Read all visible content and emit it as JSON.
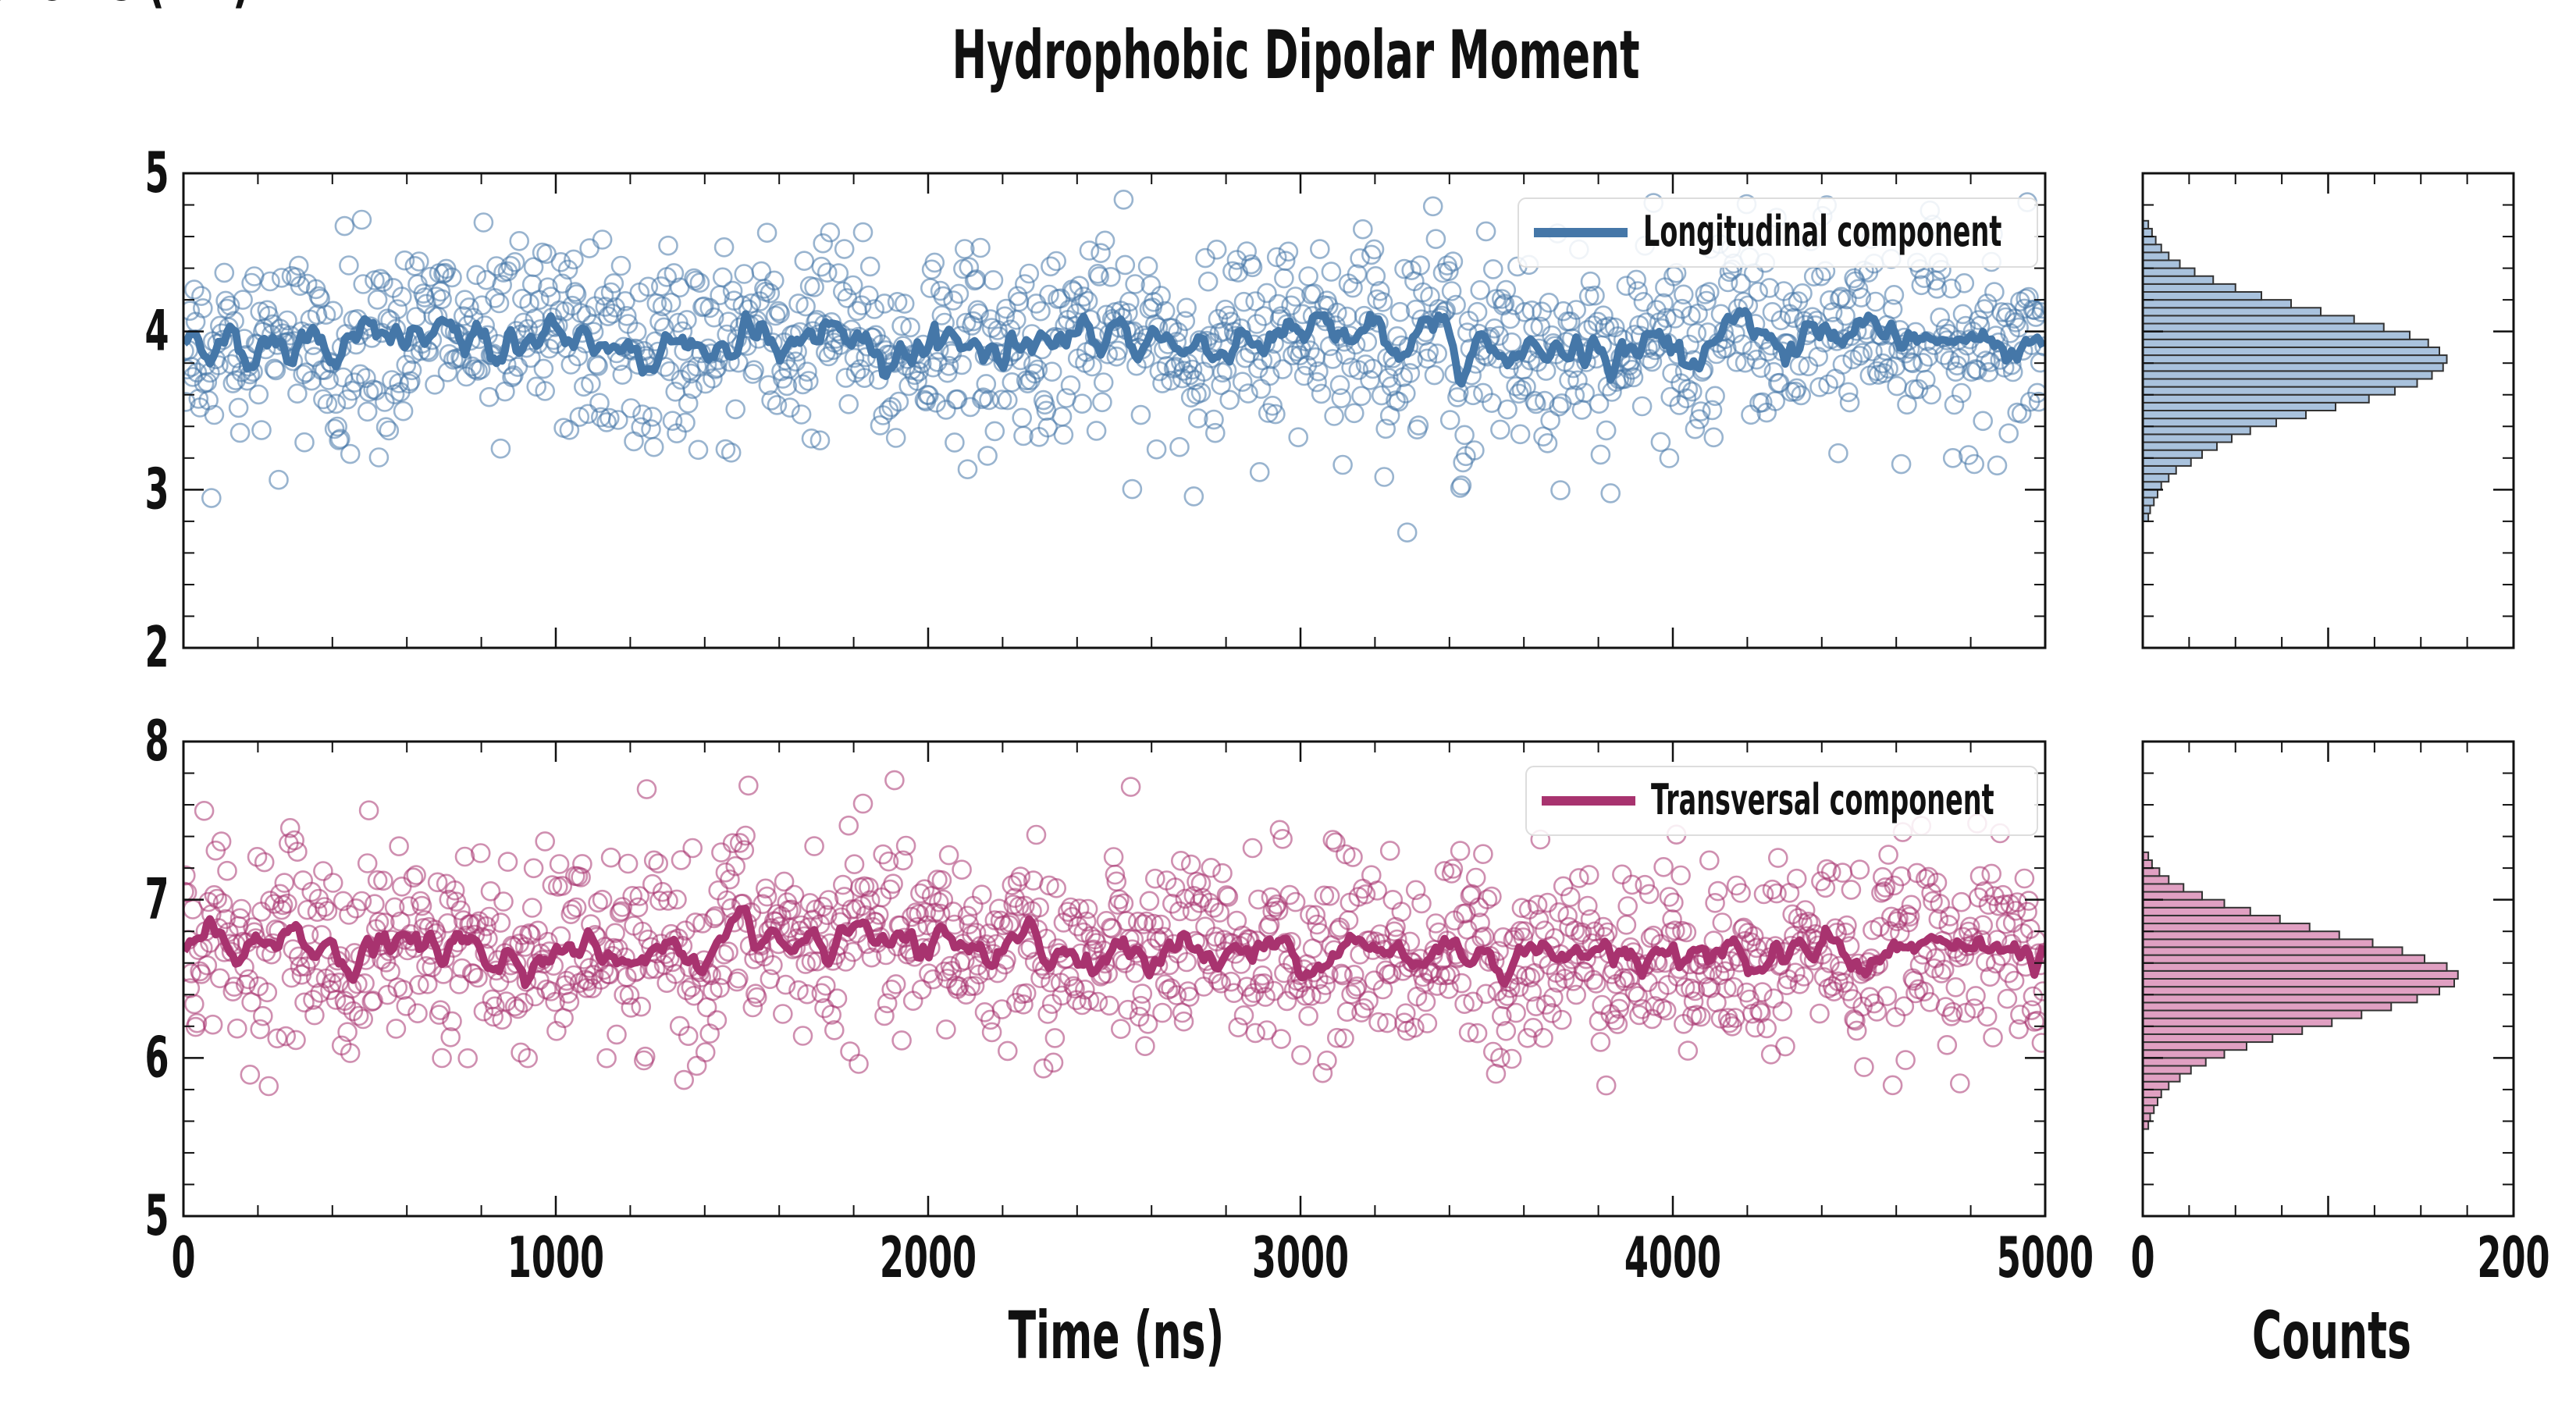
{
  "chart_data": {
    "title": "Hydrophobic Dipolar Moment",
    "ylabel": "HDM components (nm)",
    "xlabel": "Time (ns)",
    "hist_xlabel": "Counts",
    "panels": [
      {
        "type": "scatter+line",
        "legend": "Longitudinal component",
        "legend_position": "top-right",
        "color": "#4577a8",
        "xlim": [
          0,
          5000
        ],
        "ylim": [
          2,
          5
        ],
        "yticks": [
          "2",
          "3",
          "4",
          "5"
        ],
        "mean": 3.93,
        "running_mean_spread": 0.18,
        "scatter_spread": 0.3,
        "n_points": 1300,
        "histogram": {
          "xlim": [
            0,
            200
          ],
          "bin_start": 2.8,
          "bin_width": 0.05,
          "counts": [
            3,
            4,
            6,
            8,
            10,
            14,
            18,
            26,
            32,
            40,
            48,
            58,
            72,
            88,
            104,
            122,
            136,
            148,
            156,
            162,
            164,
            160,
            154,
            144,
            130,
            114,
            96,
            80,
            64,
            50,
            38,
            28,
            20,
            14,
            10,
            7,
            5,
            3
          ]
        }
      },
      {
        "type": "scatter+line",
        "legend": "Transversal component",
        "legend_position": "top-right",
        "color": "#a8336f",
        "xlim": [
          0,
          5000
        ],
        "ylim": [
          5,
          8
        ],
        "yticks": [
          "5",
          "6",
          "7",
          "8"
        ],
        "mean": 6.68,
        "running_mean_spread": 0.16,
        "scatter_spread": 0.3,
        "n_points": 1300,
        "histogram": {
          "xlim": [
            0,
            200
          ],
          "bin_start": 5.55,
          "bin_width": 0.05,
          "counts": [
            3,
            4,
            6,
            8,
            10,
            14,
            20,
            26,
            34,
            44,
            56,
            70,
            86,
            102,
            118,
            134,
            148,
            160,
            168,
            170,
            164,
            152,
            140,
            124,
            106,
            90,
            74,
            58,
            44,
            32,
            22,
            14,
            9,
            5,
            3
          ]
        }
      }
    ],
    "x_ticks": [
      "0",
      "1000",
      "2000",
      "3000",
      "4000",
      "5000"
    ],
    "hist_ticks": [
      "0",
      "200"
    ]
  }
}
